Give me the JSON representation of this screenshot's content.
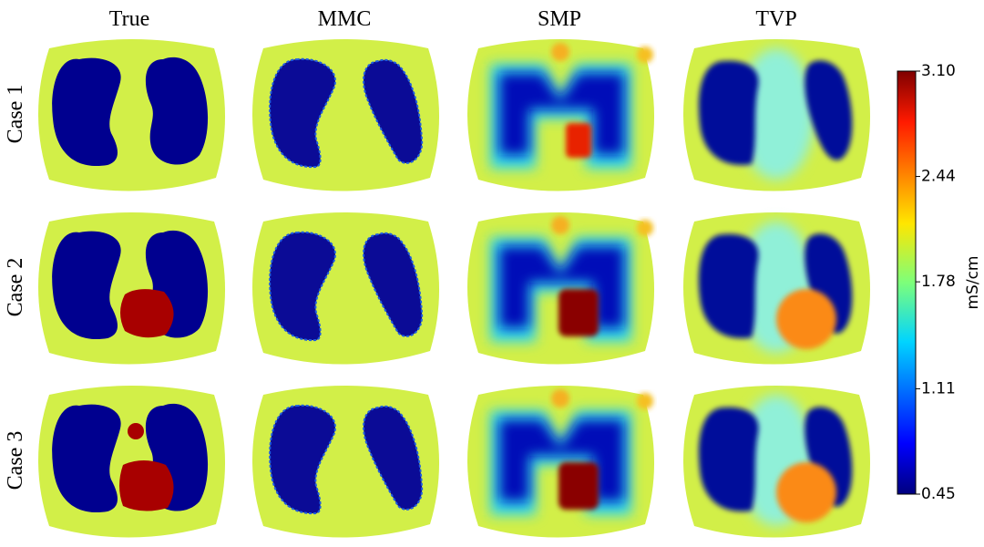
{
  "columns": [
    "True",
    "MMC",
    "SMP",
    "TVP"
  ],
  "rows": [
    "Case 1",
    "Case 2",
    "Case 3"
  ],
  "colorbar": {
    "label": "mS/cm",
    "range": [
      0.45,
      3.1
    ],
    "ticks": [
      0.45,
      1.11,
      1.78,
      2.44,
      {
        "value": 3.1,
        "label": "3.10"
      }
    ]
  }
}
